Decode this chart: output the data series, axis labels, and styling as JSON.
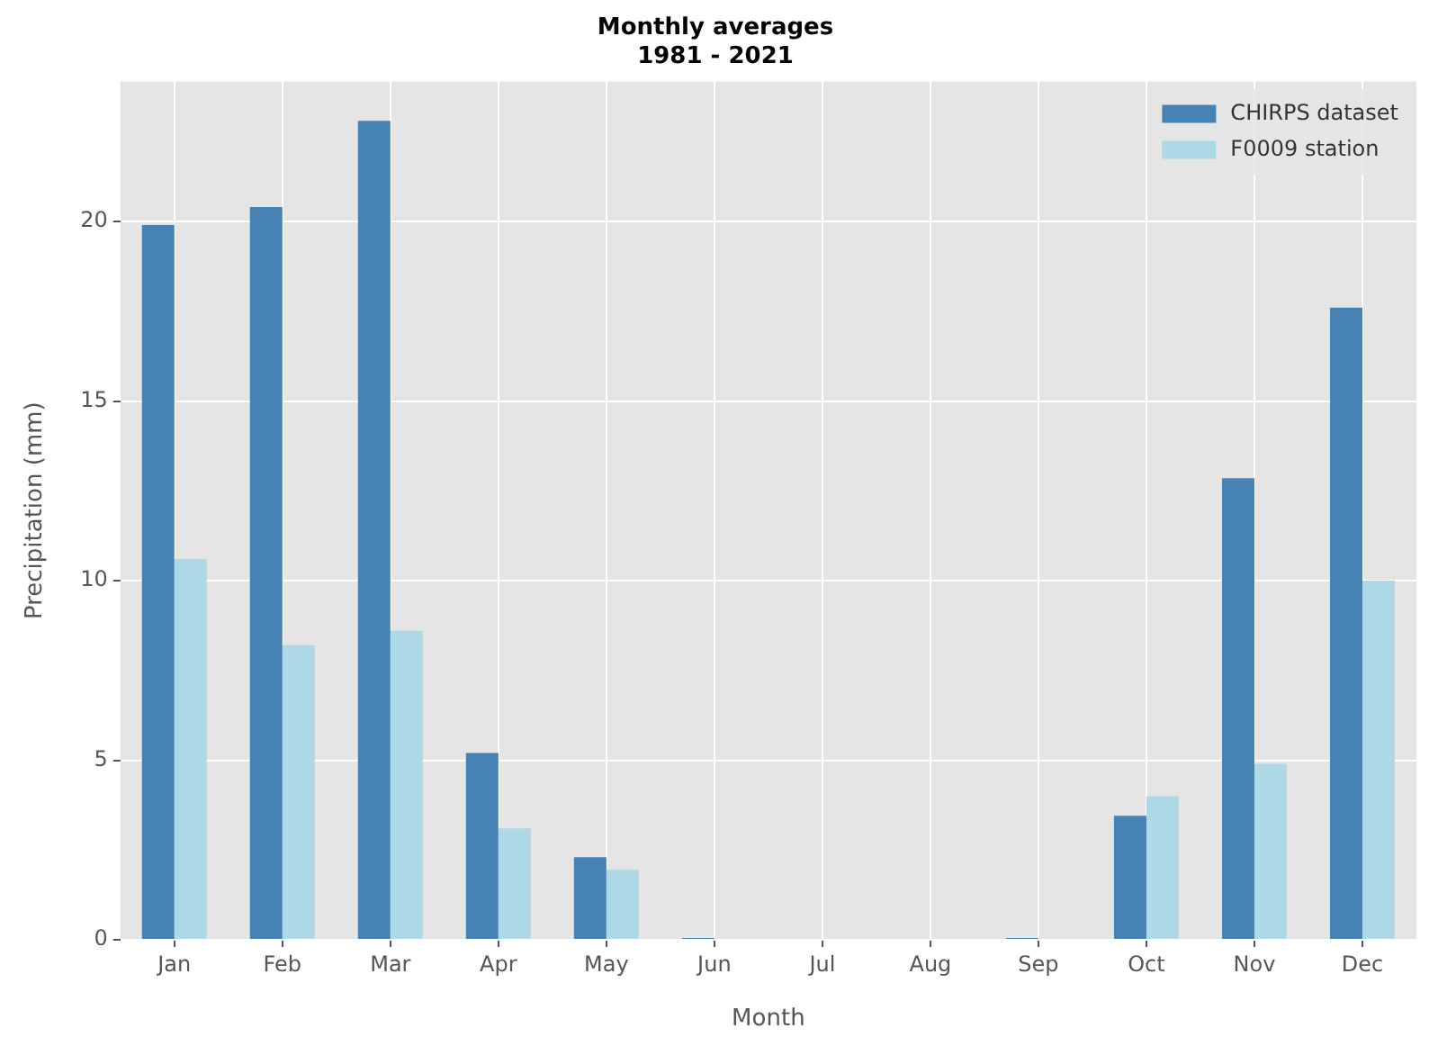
{
  "chart_data": {
    "type": "bar",
    "title": "Monthly averages\n1981 - 2021",
    "xlabel": "Month",
    "ylabel": "Precipitation (mm)",
    "categories": [
      "Jan",
      "Feb",
      "Mar",
      "Apr",
      "May",
      "Jun",
      "Jul",
      "Aug",
      "Sep",
      "Oct",
      "Nov",
      "Dec"
    ],
    "series": [
      {
        "name": "CHIRPS dataset",
        "color": "#4682b4",
        "values": [
          19.9,
          20.4,
          22.8,
          5.2,
          2.3,
          0.05,
          0,
          0,
          0.05,
          3.45,
          12.85,
          17.6
        ]
      },
      {
        "name": "F0009 station",
        "color": "#add8e6",
        "values": [
          10.6,
          8.2,
          8.6,
          3.1,
          1.95,
          0,
          0,
          0,
          0,
          4.0,
          4.9,
          10.0
        ]
      }
    ],
    "ylim": [
      0,
      23.9
    ],
    "yticks": [
      0,
      5,
      10,
      15,
      20
    ],
    "grid": true,
    "legend": "top right"
  }
}
